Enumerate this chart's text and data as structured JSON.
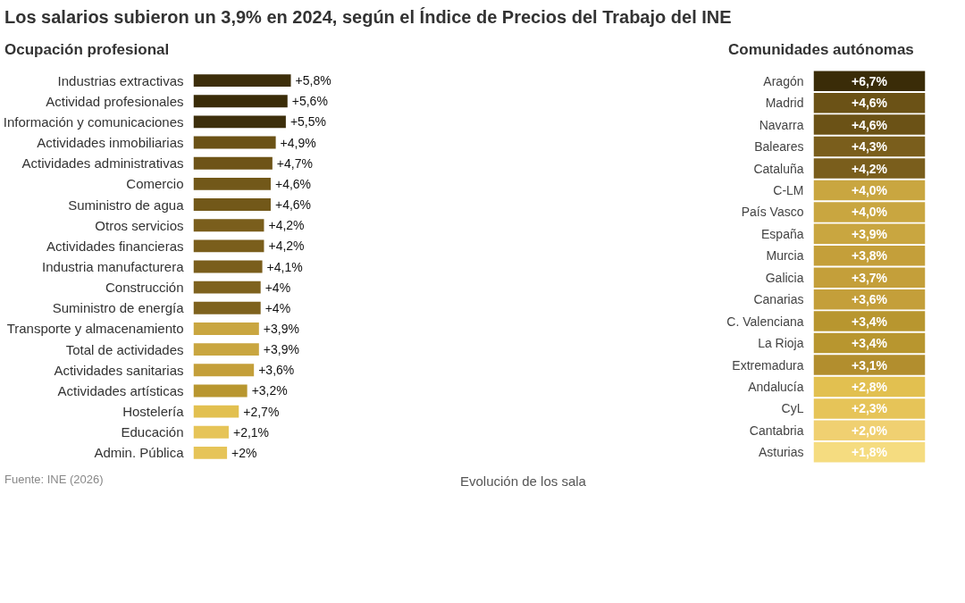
{
  "chart_data": [
    {
      "type": "bar",
      "orientation": "horizontal",
      "title": "Los salarios subieron un 3,9% en 2024, según el Índice de Precios del Trabajo del INE",
      "subtitle": "Ocupación profesional",
      "categories": [
        "Industrias extractivas",
        "Actividad profesionales",
        "Información y comunicaciones",
        "Actividades inmobiliarias",
        "Actividades administrativas",
        "Comercio",
        "Suministro de agua",
        "Otros servicios",
        "Actividades financieras",
        "Industria manufacturera",
        "Construcción",
        "Suministro de energía",
        "Transporte y almacenamiento",
        "Total de actividades",
        "Actividades sanitarias",
        "Actividades artísticas",
        "Hostelería",
        "Educación",
        "Admin. Pública"
      ],
      "values": [
        5.8,
        5.6,
        5.5,
        4.9,
        4.7,
        4.6,
        4.6,
        4.2,
        4.2,
        4.1,
        4,
        4,
        3.9,
        3.9,
        3.6,
        3.2,
        2.7,
        2.1,
        2
      ],
      "value_labels": [
        "+5,8%",
        "+5,6%",
        "+5,5%",
        "+4,9%",
        "+4,7%",
        "+4,6%",
        "+4,6%",
        "+4,2%",
        "+4,2%",
        "+4,1%",
        "+4%",
        "+4%",
        "+3,9%",
        "+3,9%",
        "+3,6%",
        "+3,2%",
        "+2,7%",
        "+2,1%",
        "+2%"
      ],
      "colors": [
        "#3d2e0a",
        "#3a2c08",
        "#3d2f0c",
        "#6b5216",
        "#6e5418",
        "#725819",
        "#725819",
        "#7a5e1c",
        "#7a5e1c",
        "#7a5e1c",
        "#7e621e",
        "#7e621e",
        "#c9a640",
        "#c9a640",
        "#c49f3a",
        "#b8962f",
        "#e2c050",
        "#e6c458",
        "#e6c458"
      ],
      "annotations": [
        "Fuente: INE (2026)"
      ]
    },
    {
      "type": "heatmap",
      "title": "Comunidades autónomas",
      "categories": [
        null
      ],
      "y_categories": [
        "Aragón",
        "Madrid",
        "Navarra",
        "Baleares",
        "Cataluña",
        "C-LM",
        "País Vasco",
        "España",
        "Murcia",
        "Galicia",
        "Canarias",
        "C. Valenciana",
        "La Rioja",
        "Extremadura",
        "Andalucía",
        "CyL",
        "Cantabria",
        "Asturias"
      ],
      "cells": [
        [
          6.7
        ],
        [
          4.6
        ],
        [
          4.6
        ],
        [
          4.3
        ],
        [
          4.2
        ],
        [
          4.0
        ],
        [
          4.0
        ],
        [
          3.9
        ],
        [
          3.8
        ],
        [
          3.7
        ],
        [
          3.6
        ],
        [
          3.4
        ],
        [
          3.4
        ],
        [
          3.1
        ],
        [
          2.8
        ],
        [
          2.3
        ],
        [
          2.0
        ],
        [
          1.8
        ]
      ],
      "cell_labels": [
        [
          "+6,7%"
        ],
        [
          "+4,6%"
        ],
        [
          "+4,6%"
        ],
        [
          "+4,3%"
        ],
        [
          "+4,2%"
        ],
        [
          "+4,0%"
        ],
        [
          "+4,0%"
        ],
        [
          "+3,9%"
        ],
        [
          "+3,8%"
        ],
        [
          "+3,7%"
        ],
        [
          "+3,6%"
        ],
        [
          "+3,4%"
        ],
        [
          "+3,4%"
        ],
        [
          "+3,1%"
        ],
        [
          "+2,8%"
        ],
        [
          "+2,3%"
        ],
        [
          "+2,0%"
        ],
        [
          "+1,8%"
        ]
      ],
      "colors": [
        "#3a2c08",
        "#6b5216",
        "#6b5216",
        "#7a5e1c",
        "#7a5e1c",
        "#c9a640",
        "#c9a640",
        "#c9a640",
        "#c49f3a",
        "#c49f3a",
        "#c49f3a",
        "#b8962f",
        "#b8962f",
        "#b08c2c",
        "#e2c050",
        "#e6c458",
        "#f0d070",
        "#f5dc80"
      ],
      "annotations": [
        "Evolución de los sala"
      ]
    }
  ]
}
